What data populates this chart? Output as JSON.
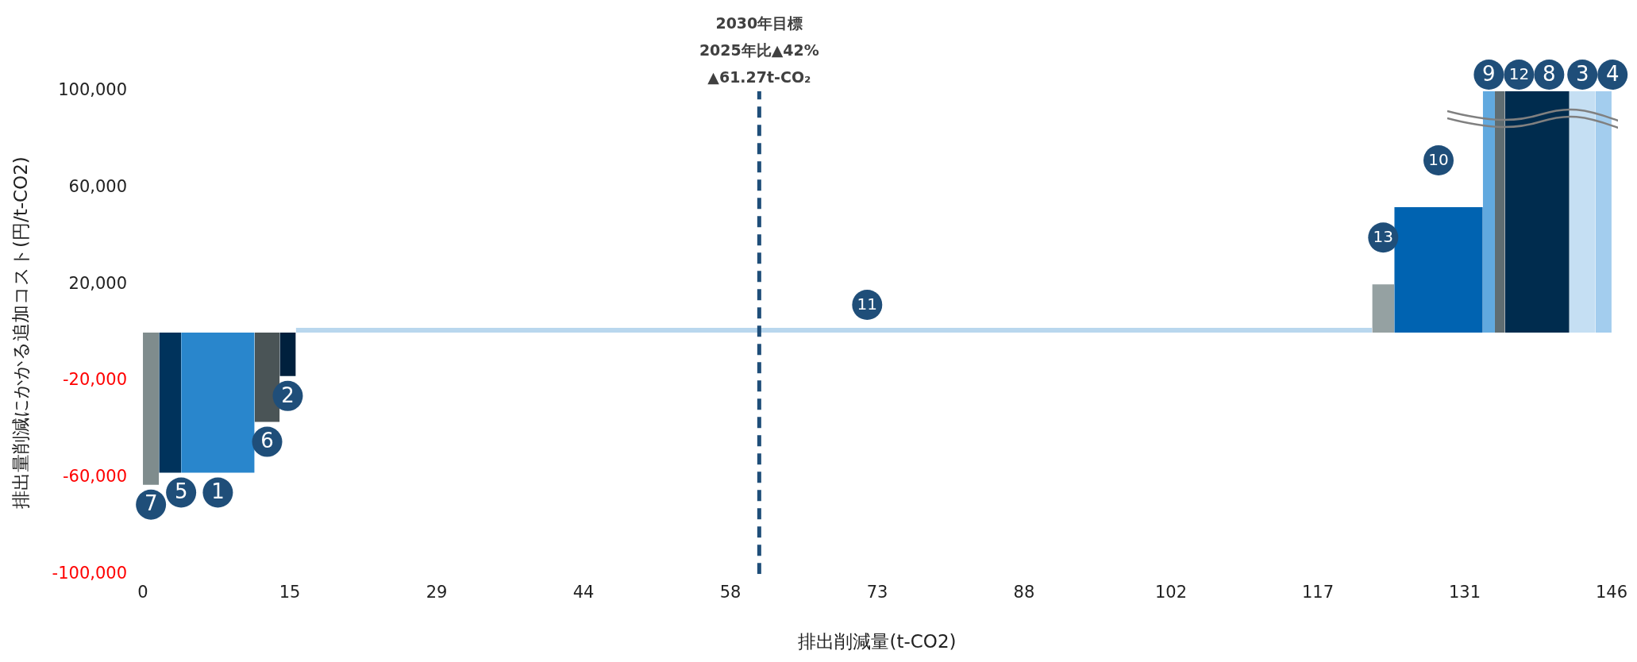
{
  "chart_data": {
    "type": "area",
    "xlabel": "排出削減量(t-CO2)",
    "ylabel": "排出量削減にかかる追加コスト(円/t-CO2)",
    "xlim": [
      0,
      146
    ],
    "xticks": [
      0,
      {
        "value": 14.6,
        "label": "15"
      },
      {
        "value": 29.2,
        "label": "29"
      },
      {
        "value": 43.8,
        "label": "44"
      },
      {
        "value": 58.4,
        "label": "58"
      },
      73,
      {
        "value": 87.6,
        "label": "88"
      },
      {
        "value": 102.2,
        "label": "102"
      },
      {
        "value": 116.8,
        "label": "117"
      },
      {
        "value": 131.4,
        "label": "131"
      },
      146
    ],
    "ylim": [
      -100000,
      100000
    ],
    "yticks": [
      {
        "value": -100000,
        "label": "-100,000"
      },
      {
        "value": -60000,
        "label": "-60,000"
      },
      {
        "value": -20000,
        "label": "-20,000"
      },
      {
        "value": 20000,
        "label": "20,000"
      },
      {
        "value": 60000,
        "label": "60,000"
      },
      {
        "value": 100000,
        "label": "100,000"
      }
    ],
    "grid": false,
    "legend": false,
    "series": [
      {
        "color": "#7f8c8d",
        "x": [
          0,
          1.6
        ],
        "values": [
          -63000,
          -63000
        ]
      },
      {
        "color": "#00335c",
        "x": [
          1.6,
          3.8
        ],
        "values": [
          -58000,
          -58000
        ]
      },
      {
        "color": "#2986cc",
        "x": [
          3.8,
          11.1
        ],
        "values": [
          -58000,
          -58000
        ]
      },
      {
        "color": "#4a5456",
        "x": [
          11.1,
          13.6
        ],
        "values": [
          -37000,
          -37000
        ]
      },
      {
        "color": "#00203d",
        "x": [
          13.6,
          15.2
        ],
        "values": [
          -18000,
          -18000
        ]
      },
      {
        "color": "#b9d7ee",
        "x": [
          15.2,
          122.2
        ],
        "values": [
          2000,
          2000
        ]
      },
      {
        "color": "#95a1a2",
        "x": [
          122.2,
          124.4
        ],
        "values": [
          20000,
          20000
        ]
      },
      {
        "color": "#0063b1",
        "x": [
          124.4,
          133.2
        ],
        "values": [
          52000,
          52000
        ]
      },
      {
        "color": "#61a9df",
        "x": [
          133.2,
          134.4
        ],
        "values": [
          100000,
          100000
        ]
      },
      {
        "color": "#5f6d72",
        "x": [
          134.4,
          135.4
        ],
        "values": [
          100000,
          100000
        ]
      },
      {
        "color": "#002c4e",
        "x": [
          135.4,
          141.8
        ],
        "values": [
          100000,
          100000
        ]
      },
      {
        "color": "#c5dff3",
        "x": [
          141.8,
          144.4
        ],
        "values": [
          100000,
          100000
        ]
      },
      {
        "color": "#a3cdee",
        "x": [
          144.4,
          146
        ],
        "values": [
          100000,
          100000
        ]
      }
    ],
    "annotations": [
      {
        "text": "7",
        "x": 0.8,
        "y": -63000
      },
      {
        "text": "5",
        "x": 2.7,
        "y": -58000
      },
      {
        "text": "1",
        "x": 7.45,
        "y": -58000
      },
      {
        "text": "6",
        "x": 12.35,
        "y": -37000
      },
      {
        "text": "2",
        "x": 14.4,
        "y": -18000
      },
      {
        "text": "11",
        "x": 72,
        "y": 2000
      },
      {
        "text": "13",
        "x": 123.3,
        "y": 20000
      },
      {
        "text": "10",
        "x": 128.8,
        "y": 52000
      },
      {
        "text": "9",
        "x": 133.8,
        "y": 100000
      },
      {
        "text": "12",
        "x": 134.9,
        "y": 100000
      },
      {
        "text": "8",
        "x": 138.6,
        "y": 100000
      },
      {
        "text": "3",
        "x": 143.1,
        "y": 100000
      },
      {
        "text": "4",
        "x": 145.2,
        "y": 100000
      }
    ],
    "ref_lines": [
      {
        "axis": "x",
        "value": 61.27,
        "color": "#1f4e79",
        "line_style": "dashed",
        "label": "2030年目標\n2025年比▲42%\n▲61.27t-CO₂"
      }
    ]
  }
}
